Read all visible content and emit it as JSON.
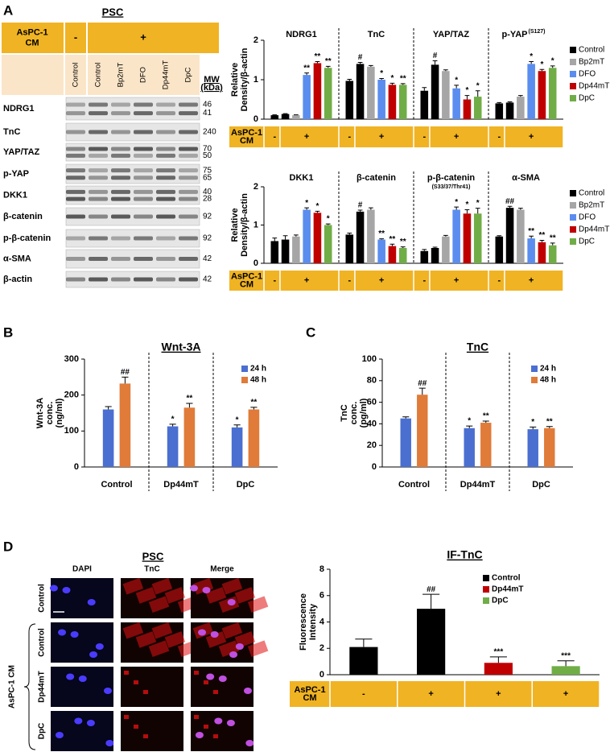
{
  "panel_labels": [
    "A",
    "B",
    "C",
    "D"
  ],
  "blot": {
    "title": "PSC",
    "cm_label": "AsPC-1 CM",
    "cm": [
      "-",
      "+"
    ],
    "lanes": [
      "Control",
      "Control",
      "Bp2mT",
      "DFO",
      "Dp44mT",
      "DpC"
    ],
    "mw_label": "MW (kDa)",
    "rows": [
      {
        "name": "NDRG1",
        "mw": [
          46,
          41
        ]
      },
      {
        "name": "TnC",
        "mw": [
          240
        ]
      },
      {
        "name": "YAP/TAZ",
        "mw": [
          70,
          50
        ]
      },
      {
        "name": "p-YAP",
        "mw": [
          75,
          65
        ]
      },
      {
        "name": "DKK1",
        "mw": [
          40,
          28
        ]
      },
      {
        "name": "β-catenin",
        "mw": [
          92
        ]
      },
      {
        "name": "p-β-catenin",
        "mw": [
          92
        ]
      },
      {
        "name": "α-SMA",
        "mw": [
          42
        ]
      },
      {
        "name": "β-actin",
        "mw": [
          42
        ]
      }
    ]
  },
  "if_panel": {
    "title": "PSC",
    "columns": [
      "DAPI",
      "TnC",
      "Merge"
    ],
    "rows": [
      "Control",
      "Control",
      "Dp44mT",
      "DpC"
    ],
    "cm_label": "AsPC-1 CM"
  },
  "chart_data": [
    {
      "type": "bar",
      "y_label": "Relative Density/β-actin",
      "ylim": [
        0,
        2
      ],
      "yticks": [
        0,
        1,
        2
      ],
      "legend": [
        {
          "name": "Control",
          "color": "#000000"
        },
        {
          "name": "Bp2mT",
          "color": "#a6a6a6"
        },
        {
          "name": "DFO",
          "color": "#5b8def"
        },
        {
          "name": "Dp44mT",
          "color": "#c00000"
        },
        {
          "name": "DpC",
          "color": "#70ad47"
        }
      ],
      "bar_colors": [
        "#000000",
        "#000000",
        "#a6a6a6",
        "#5b8def",
        "#c00000",
        "#70ad47"
      ],
      "cm_label": "AsPC-1 CM",
      "groups": [
        {
          "name": "NDRG1",
          "values": [
            0.1,
            0.13,
            0.1,
            1.12,
            1.42,
            1.3
          ],
          "errors": [
            0.01,
            0.01,
            0.01,
            0.05,
            0.04,
            0.04
          ],
          "marks": [
            null,
            null,
            null,
            "**",
            "**",
            "**"
          ],
          "cm": [
            "-",
            "+"
          ]
        },
        {
          "name": "TnC",
          "values": [
            0.97,
            1.4,
            1.33,
            1.0,
            0.87,
            0.87
          ],
          "errors": [
            0.04,
            0.04,
            0.03,
            0.03,
            0.04,
            0.03
          ],
          "marks": [
            null,
            "#",
            null,
            "*",
            "*",
            "**"
          ],
          "cm": [
            "-",
            "+"
          ]
        },
        {
          "name": "YAP/TAZ",
          "values": [
            0.72,
            1.38,
            1.22,
            0.78,
            0.5,
            0.57
          ],
          "errors": [
            0.08,
            0.1,
            0.03,
            0.08,
            0.1,
            0.15
          ],
          "marks": [
            null,
            "#",
            null,
            "*",
            "*",
            "*"
          ],
          "cm": [
            "-",
            "+"
          ]
        },
        {
          "name": "p-YAP",
          "name_sup": "(S127)",
          "values": [
            0.4,
            0.42,
            0.57,
            1.4,
            1.22,
            1.3
          ],
          "errors": [
            0.02,
            0.02,
            0.03,
            0.06,
            0.04,
            0.05
          ],
          "marks": [
            null,
            null,
            null,
            "*",
            "*",
            "*"
          ],
          "cm": [
            "-",
            "+"
          ]
        }
      ]
    },
    {
      "type": "bar",
      "y_label": "Relative Density/β-actin",
      "ylim": [
        0,
        2
      ],
      "yticks": [
        0,
        1,
        2
      ],
      "legend": [
        {
          "name": "Control",
          "color": "#000000"
        },
        {
          "name": "Bp2mT",
          "color": "#a6a6a6"
        },
        {
          "name": "DFO",
          "color": "#5b8def"
        },
        {
          "name": "Dp44mT",
          "color": "#c00000"
        },
        {
          "name": "DpC",
          "color": "#70ad47"
        }
      ],
      "bar_colors": [
        "#000000",
        "#000000",
        "#a6a6a6",
        "#5b8def",
        "#c00000",
        "#70ad47"
      ],
      "cm_label": "AsPC-1 CM",
      "groups": [
        {
          "name": "DKK1",
          "values": [
            0.58,
            0.62,
            0.7,
            1.4,
            1.32,
            1.0
          ],
          "errors": [
            0.08,
            0.1,
            0.04,
            0.05,
            0.04,
            0.03
          ],
          "marks": [
            null,
            null,
            null,
            "*",
            "*",
            "*"
          ],
          "cm": [
            "-",
            "+"
          ]
        },
        {
          "name": "β-catenin",
          "values": [
            0.75,
            1.35,
            1.4,
            0.62,
            0.45,
            0.4
          ],
          "errors": [
            0.04,
            0.04,
            0.05,
            0.02,
            0.05,
            0.03
          ],
          "marks": [
            null,
            "#",
            null,
            "**",
            "**",
            "**"
          ],
          "cm": [
            "-",
            "+"
          ]
        },
        {
          "name": "p-β-catenin",
          "name_sub": "(S33/37/Thr41)",
          "values": [
            0.32,
            0.4,
            0.7,
            1.4,
            1.3,
            1.3
          ],
          "errors": [
            0.04,
            0.02,
            0.03,
            0.07,
            0.1,
            0.14
          ],
          "marks": [
            null,
            null,
            null,
            "*",
            "*",
            "*"
          ],
          "cm": [
            "-",
            "+"
          ]
        },
        {
          "name": "α-SMA",
          "values": [
            0.7,
            1.45,
            1.4,
            0.65,
            0.55,
            0.47
          ],
          "errors": [
            0.02,
            0.04,
            0.04,
            0.06,
            0.05,
            0.06
          ],
          "marks": [
            null,
            "##",
            null,
            "**",
            "**",
            "**"
          ],
          "cm": [
            "-",
            "+"
          ]
        }
      ]
    },
    {
      "type": "bar",
      "title": "Wnt-3A",
      "y_label": "Wnt-3A conc. (ng/ml)",
      "ylim": [
        0,
        300
      ],
      "yticks": [
        0,
        100,
        200,
        300
      ],
      "categories": [
        "Control",
        "Dp44mT",
        "DpC"
      ],
      "series": [
        {
          "name": "24 h",
          "color": "#4a6fd1",
          "values": [
            160,
            113,
            110
          ],
          "errors": [
            8,
            6,
            7
          ],
          "marks": [
            null,
            "*",
            "*"
          ]
        },
        {
          "name": "48 h",
          "color": "#e07b39",
          "values": [
            232,
            165,
            160
          ],
          "errors": [
            18,
            12,
            6
          ],
          "marks": [
            "##",
            "**",
            "**"
          ]
        }
      ]
    },
    {
      "type": "bar",
      "title": "TnC",
      "y_label": "TnC conc. (pg/ml)",
      "ylim": [
        0,
        100
      ],
      "yticks": [
        0,
        20,
        40,
        60,
        80,
        100
      ],
      "categories": [
        "Control",
        "Dp44mT",
        "DpC"
      ],
      "series": [
        {
          "name": "24 h",
          "color": "#4a6fd1",
          "values": [
            45,
            36,
            35
          ],
          "errors": [
            1.5,
            2,
            2
          ],
          "marks": [
            null,
            "*",
            "*"
          ]
        },
        {
          "name": "48 h",
          "color": "#e07b39",
          "values": [
            67,
            41,
            36
          ],
          "errors": [
            6,
            1.5,
            1.5
          ],
          "marks": [
            "##",
            "**",
            "**"
          ]
        }
      ]
    },
    {
      "type": "bar",
      "title": "IF-TnC",
      "y_label": "Fluorescence Intensity",
      "ylim": [
        0,
        8
      ],
      "yticks": [
        0,
        2,
        4,
        6,
        8
      ],
      "values": [
        2.1,
        5.0,
        0.9,
        0.65
      ],
      "errors": [
        0.6,
        1.1,
        0.45,
        0.4
      ],
      "marks": [
        null,
        "##",
        "***",
        "***"
      ],
      "colors": [
        "#000000",
        "#000000",
        "#c00000",
        "#70ad47"
      ],
      "legend": [
        {
          "name": "Control",
          "color": "#000000"
        },
        {
          "name": "Dp44mT",
          "color": "#c00000"
        },
        {
          "name": "DpC",
          "color": "#70ad47"
        }
      ],
      "cm_label": "AsPC-1 CM",
      "cm": [
        "-",
        "+",
        "+",
        "+"
      ]
    }
  ]
}
